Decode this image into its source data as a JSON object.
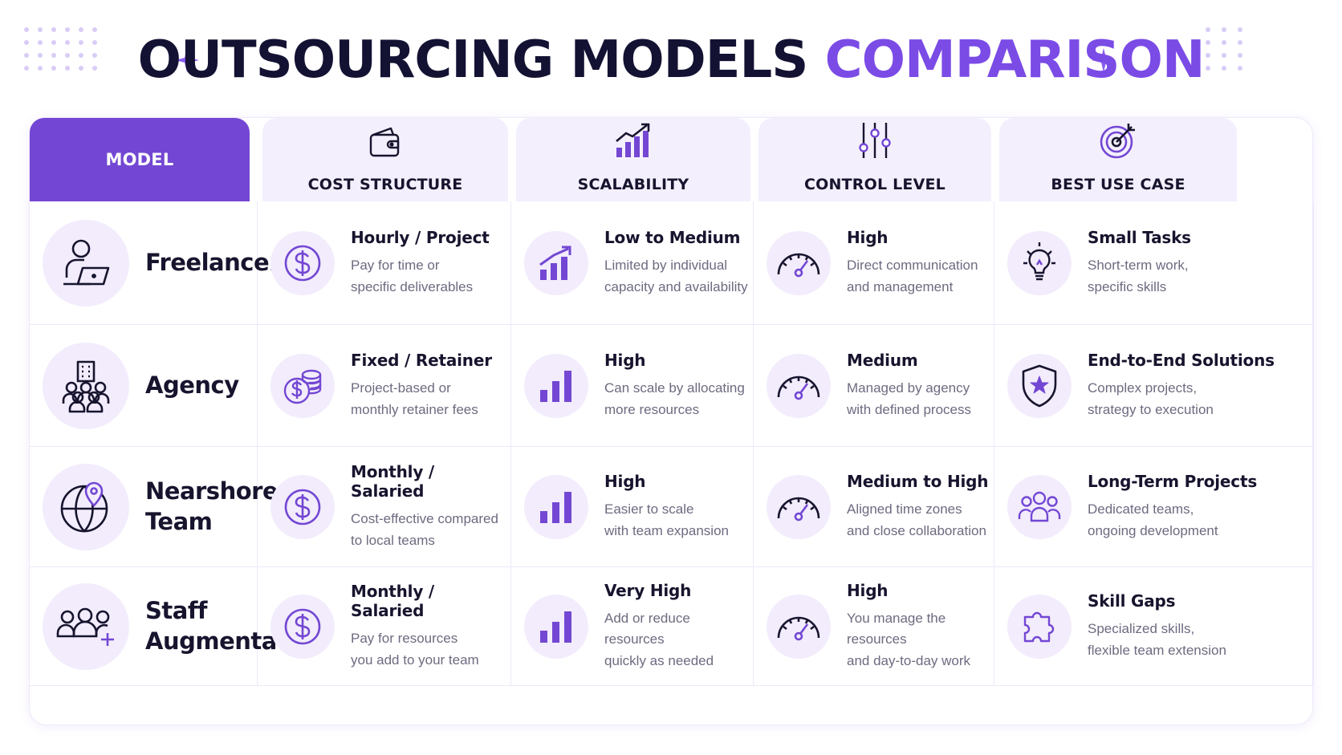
{
  "title": {
    "main": "OUTSOURCING MODELS",
    "accent": "COMPARISON"
  },
  "colors": {
    "accent": "#7b4be6",
    "header_fill": "#7347d3",
    "header_bg": "#f4effd",
    "icon_bg": "#f2ecfc",
    "dark_text": "#17142e"
  },
  "headers": [
    {
      "label": "MODEL",
      "icon": ""
    },
    {
      "label": "COST STRUCTURE",
      "icon": "wallet-icon"
    },
    {
      "label": "SCALABILITY",
      "icon": "growth-chart-icon"
    },
    {
      "label": "CONTROL LEVEL",
      "icon": "sliders-icon"
    },
    {
      "label": "BEST USE CASE",
      "icon": "target-icon"
    }
  ],
  "rows": [
    {
      "model": {
        "name_lines": [
          "Freelancer"
        ],
        "icon": "freelancer-laptop-icon"
      },
      "cost": {
        "title": "Hourly / Project",
        "desc_lines": [
          "Pay for time or",
          "specific deliverables"
        ],
        "icon": "dollar-icon"
      },
      "scalability": {
        "title": "Low to Medium",
        "desc_lines": [
          "Limited by individual",
          "capacity and availability"
        ],
        "icon": "rising-bars-icon"
      },
      "control": {
        "title": "High",
        "desc_lines": [
          "Direct communication",
          "and management"
        ],
        "icon": "gauge-icon"
      },
      "use_case": {
        "title": "Small Tasks",
        "desc_lines": [
          "Short-term work,",
          "specific skills"
        ],
        "icon": "lightbulb-icon"
      }
    },
    {
      "model": {
        "name_lines": [
          "Agency"
        ],
        "icon": "agency-building-icon"
      },
      "cost": {
        "title": "Fixed / Retainer",
        "desc_lines": [
          "Project-based or",
          "monthly retainer fees"
        ],
        "icon": "coins-icon"
      },
      "scalability": {
        "title": "High",
        "desc_lines": [
          "Can scale by allocating",
          "more resources"
        ],
        "icon": "bar-chart-icon"
      },
      "control": {
        "title": "Medium",
        "desc_lines": [
          "Managed by agency",
          "with defined process"
        ],
        "icon": "gauge-icon"
      },
      "use_case": {
        "title": "End-to-End Solutions",
        "desc_lines": [
          "Complex projects,",
          "strategy to execution"
        ],
        "icon": "shield-star-icon"
      }
    },
    {
      "model": {
        "name_lines": [
          "Nearshore",
          "Team"
        ],
        "icon": "globe-pin-icon"
      },
      "cost": {
        "title": "Monthly / Salaried",
        "desc_lines": [
          "Cost-effective compared",
          "to local teams"
        ],
        "icon": "dollar-icon"
      },
      "scalability": {
        "title": "High",
        "desc_lines": [
          "Easier to scale",
          "with team expansion"
        ],
        "icon": "bar-chart-icon"
      },
      "control": {
        "title": "Medium to High",
        "desc_lines": [
          "Aligned time zones",
          "and close collaboration"
        ],
        "icon": "gauge-icon"
      },
      "use_case": {
        "title": "Long-Term Projects",
        "desc_lines": [
          "Dedicated teams,",
          "ongoing development"
        ],
        "icon": "team-icon"
      }
    },
    {
      "model": {
        "name_lines": [
          "Staff",
          "Augmentation"
        ],
        "icon": "team-add-icon"
      },
      "cost": {
        "title": "Monthly / Salaried",
        "desc_lines": [
          "Pay for resources",
          "you add to your team"
        ],
        "icon": "dollar-icon"
      },
      "scalability": {
        "title": "Very High",
        "desc_lines": [
          "Add or reduce resources",
          "quickly as needed"
        ],
        "icon": "bar-chart-icon"
      },
      "control": {
        "title": "High",
        "desc_lines": [
          "You manage the resources",
          "and day-to-day work"
        ],
        "icon": "gauge-icon"
      },
      "use_case": {
        "title": "Skill Gaps",
        "desc_lines": [
          "Specialized skills,",
          "flexible team extension"
        ],
        "icon": "puzzle-icon"
      }
    }
  ]
}
